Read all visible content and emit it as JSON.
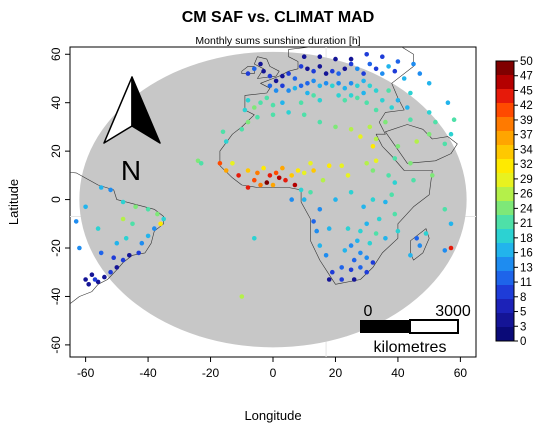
{
  "title": "CM SAF vs. CLIMAT MAD",
  "subtitle": "Monthly sums sunshine duration [h]",
  "chart_data": {
    "type": "map",
    "xlabel": "Longitude",
    "ylabel": "Latitude",
    "xlim": [
      -65,
      65
    ],
    "ylim": [
      -65,
      63
    ],
    "x_ticks": [
      -60,
      -40,
      -20,
      0,
      20,
      40,
      60
    ],
    "y_ticks": [
      -60,
      -40,
      -20,
      0,
      20,
      40,
      60
    ],
    "x_tick_labels": [
      "-60",
      "-40",
      "-20",
      "0",
      "20",
      "40",
      "60"
    ],
    "y_tick_labels": [
      "-60",
      "-40",
      "-20",
      "0",
      "20",
      "40",
      "60"
    ],
    "disk_fill": "#c7c7c7",
    "colorbar": {
      "labels": [
        "50",
        "47",
        "45",
        "42",
        "39",
        "37",
        "34",
        "32",
        "29",
        "26",
        "24",
        "21",
        "18",
        "16",
        "13",
        "11",
        "8",
        "5",
        "3",
        "0"
      ],
      "colors": [
        "#800000",
        "#b40000",
        "#e61a0a",
        "#ff4a00",
        "#ff7a00",
        "#ffa500",
        "#ffc800",
        "#ffea00",
        "#e8f220",
        "#b4f04a",
        "#7ee878",
        "#4ee0a8",
        "#2cd2d2",
        "#22b4ec",
        "#1e8cf0",
        "#1e64ea",
        "#1e3cd8",
        "#1c22b8",
        "#141496",
        "#0a0a78"
      ]
    },
    "scale_bar": {
      "start_label": "0",
      "end_label": "3000",
      "unit_label": "kilometres"
    },
    "north_arrow_label": "N",
    "stations": [
      {
        "lon": 9,
        "lat": 55,
        "v": 8
      },
      {
        "lon": 11,
        "lat": 54,
        "v": 5
      },
      {
        "lon": 13,
        "lat": 53,
        "v": 8
      },
      {
        "lon": 15,
        "lat": 55,
        "v": 3
      },
      {
        "lon": 17,
        "lat": 52,
        "v": 5
      },
      {
        "lon": 19,
        "lat": 53,
        "v": 8
      },
      {
        "lon": 21,
        "lat": 52,
        "v": 11
      },
      {
        "lon": 23,
        "lat": 54,
        "v": 5
      },
      {
        "lon": 25,
        "lat": 56,
        "v": 8
      },
      {
        "lon": 27,
        "lat": 54,
        "v": 13
      },
      {
        "lon": 29,
        "lat": 52,
        "v": 8
      },
      {
        "lon": 31,
        "lat": 56,
        "v": 11
      },
      {
        "lon": 33,
        "lat": 54,
        "v": 8
      },
      {
        "lon": 35,
        "lat": 52,
        "v": 13
      },
      {
        "lon": 37,
        "lat": 55,
        "v": 16
      },
      {
        "lon": 39,
        "lat": 53,
        "v": 8
      },
      {
        "lon": 3,
        "lat": 51,
        "v": 5
      },
      {
        "lon": 5,
        "lat": 52,
        "v": 8
      },
      {
        "lon": 7,
        "lat": 50,
        "v": 11
      },
      {
        "lon": 1,
        "lat": 49,
        "v": 5
      },
      {
        "lon": -1,
        "lat": 51,
        "v": 8
      },
      {
        "lon": -3,
        "lat": 53,
        "v": 3
      },
      {
        "lon": -4,
        "lat": 56,
        "v": 5
      },
      {
        "lon": -6,
        "lat": 54,
        "v": 11
      },
      {
        "lon": -8,
        "lat": 52,
        "v": 8
      },
      {
        "lon": 13,
        "lat": 49,
        "v": 13
      },
      {
        "lon": 11,
        "lat": 48,
        "v": 11
      },
      {
        "lon": 15,
        "lat": 47,
        "v": 16
      },
      {
        "lon": 17,
        "lat": 48,
        "v": 13
      },
      {
        "lon": 19,
        "lat": 47,
        "v": 18
      },
      {
        "lon": 21,
        "lat": 48,
        "v": 13
      },
      {
        "lon": 23,
        "lat": 46,
        "v": 16
      },
      {
        "lon": 25,
        "lat": 48,
        "v": 13
      },
      {
        "lon": 27,
        "lat": 47,
        "v": 18
      },
      {
        "lon": 29,
        "lat": 49,
        "v": 16
      },
      {
        "lon": 31,
        "lat": 47,
        "v": 18
      },
      {
        "lon": 9,
        "lat": 47,
        "v": 11
      },
      {
        "lon": 7,
        "lat": 46,
        "v": 16
      },
      {
        "lon": 5,
        "lat": 45,
        "v": 13
      },
      {
        "lon": 3,
        "lat": 47,
        "v": 8
      },
      {
        "lon": 1,
        "lat": 45,
        "v": 13
      },
      {
        "lon": -1,
        "lat": 47,
        "v": 11
      },
      {
        "lon": 13,
        "lat": 43,
        "v": 21
      },
      {
        "lon": 15,
        "lat": 41,
        "v": 18
      },
      {
        "lon": 11,
        "lat": 44,
        "v": 16
      },
      {
        "lon": 21,
        "lat": 43,
        "v": 18
      },
      {
        "lon": 23,
        "lat": 41,
        "v": 21
      },
      {
        "lon": 25,
        "lat": 43,
        "v": 18
      },
      {
        "lon": 27,
        "lat": 42,
        "v": 21
      },
      {
        "lon": 29,
        "lat": 44,
        "v": 16
      },
      {
        "lon": 33,
        "lat": 45,
        "v": 18
      },
      {
        "lon": 37,
        "lat": 45,
        "v": 21
      },
      {
        "lon": -4,
        "lat": 40,
        "v": 21
      },
      {
        "lon": -6,
        "lat": 38,
        "v": 24
      },
      {
        "lon": -8,
        "lat": 41,
        "v": 18
      },
      {
        "lon": -2,
        "lat": 42,
        "v": 21
      },
      {
        "lon": 0,
        "lat": 39,
        "v": 21
      },
      {
        "lon": -9,
        "lat": 37,
        "v": 18
      },
      {
        "lon": 3,
        "lat": 40,
        "v": 16
      },
      {
        "lon": 9,
        "lat": 40,
        "v": 21
      },
      {
        "lon": 25,
        "lat": 58,
        "v": 5
      },
      {
        "lon": 30,
        "lat": 60,
        "v": 8
      },
      {
        "lon": 20,
        "lat": 58,
        "v": 3
      },
      {
        "lon": 15,
        "lat": 59,
        "v": 5
      },
      {
        "lon": 10,
        "lat": 59,
        "v": 3
      },
      {
        "lon": 35,
        "lat": 59,
        "v": 8
      },
      {
        "lon": 40,
        "lat": 57,
        "v": 11
      },
      {
        "lon": 45,
        "lat": 56,
        "v": 13
      },
      {
        "lon": 42,
        "lat": 50,
        "v": 16
      },
      {
        "lon": 47,
        "lat": 52,
        "v": 13
      },
      {
        "lon": 50,
        "lat": 48,
        "v": 16
      },
      {
        "lon": 44,
        "lat": 44,
        "v": 18
      },
      {
        "lon": 40,
        "lat": 41,
        "v": 16
      },
      {
        "lon": 35,
        "lat": 41,
        "v": 18
      },
      {
        "lon": 30,
        "lat": 40,
        "v": 21
      },
      {
        "lon": 33,
        "lat": 37,
        "v": 21
      },
      {
        "lon": 38,
        "lat": 38,
        "v": 18
      },
      {
        "lon": 43,
        "lat": 38,
        "v": 16
      },
      {
        "lon": 50,
        "lat": 36,
        "v": 18
      },
      {
        "lon": 56,
        "lat": 40,
        "v": 16
      },
      {
        "lon": 52,
        "lat": 32,
        "v": 21
      },
      {
        "lon": 36,
        "lat": 32,
        "v": 24
      },
      {
        "lon": 31,
        "lat": 30,
        "v": 26
      },
      {
        "lon": 44,
        "lat": 33,
        "v": 21
      },
      {
        "lon": 50,
        "lat": 27,
        "v": 24
      },
      {
        "lon": 46,
        "lat": 24,
        "v": 26
      },
      {
        "lon": 40,
        "lat": 22,
        "v": 24
      },
      {
        "lon": 39,
        "lat": 17,
        "v": 21
      },
      {
        "lon": 44,
        "lat": 15,
        "v": 24
      },
      {
        "lon": 55,
        "lat": 23,
        "v": 21
      },
      {
        "lon": 57,
        "lat": 27,
        "v": 18
      },
      {
        "lon": 58,
        "lat": 33,
        "v": 21
      },
      {
        "lon": 33,
        "lat": 25,
        "v": 26
      },
      {
        "lon": 28,
        "lat": 26,
        "v": 29
      },
      {
        "lon": 32,
        "lat": 22,
        "v": 32
      },
      {
        "lon": 25,
        "lat": 29,
        "v": 26
      },
      {
        "lon": 20,
        "lat": 30,
        "v": 24
      },
      {
        "lon": 15,
        "lat": 32,
        "v": 21
      },
      {
        "lon": 10,
        "lat": 35,
        "v": 21
      },
      {
        "lon": 5,
        "lat": 36,
        "v": 18
      },
      {
        "lon": 0,
        "lat": 35,
        "v": 21
      },
      {
        "lon": -5,
        "lat": 34,
        "v": 21
      },
      {
        "lon": -8,
        "lat": 32,
        "v": 24
      },
      {
        "lon": -10,
        "lat": 29,
        "v": 21
      },
      {
        "lon": -16,
        "lat": 28,
        "v": 21
      },
      {
        "lon": -15,
        "lat": 24,
        "v": 18
      },
      {
        "lon": -13,
        "lat": 15,
        "v": 29
      },
      {
        "lon": -17,
        "lat": 15,
        "v": 42
      },
      {
        "lon": -15,
        "lat": 12,
        "v": 37
      },
      {
        "lon": -11,
        "lat": 10,
        "v": 45
      },
      {
        "lon": -8,
        "lat": 12,
        "v": 34
      },
      {
        "lon": -5,
        "lat": 11,
        "v": 39
      },
      {
        "lon": -3,
        "lat": 13,
        "v": 32
      },
      {
        "lon": -1,
        "lat": 10,
        "v": 45
      },
      {
        "lon": 1,
        "lat": 11,
        "v": 42
      },
      {
        "lon": 3,
        "lat": 13,
        "v": 37
      },
      {
        "lon": 2,
        "lat": 9,
        "v": 47
      },
      {
        "lon": -2,
        "lat": 7,
        "v": 50
      },
      {
        "lon": 4,
        "lat": 8,
        "v": 45
      },
      {
        "lon": 6,
        "lat": 10,
        "v": 34
      },
      {
        "lon": 8,
        "lat": 12,
        "v": 32
      },
      {
        "lon": 10,
        "lat": 11,
        "v": 29
      },
      {
        "lon": 13,
        "lat": 12,
        "v": 34
      },
      {
        "lon": 7,
        "lat": 6,
        "v": 47
      },
      {
        "lon": -6,
        "lat": 8,
        "v": 42
      },
      {
        "lon": -4,
        "lat": 6,
        "v": 39
      },
      {
        "lon": 0,
        "lat": 6,
        "v": 37
      },
      {
        "lon": -8,
        "lat": 5,
        "v": 45
      },
      {
        "lon": 12,
        "lat": 15,
        "v": 29
      },
      {
        "lon": 18,
        "lat": 14,
        "v": 32
      },
      {
        "lon": 22,
        "lat": 14,
        "v": 29
      },
      {
        "lon": 30,
        "lat": 15,
        "v": 26
      },
      {
        "lon": 33,
        "lat": 16,
        "v": 29
      },
      {
        "lon": 32,
        "lat": 12,
        "v": 24
      },
      {
        "lon": 37,
        "lat": 10,
        "v": 21
      },
      {
        "lon": 39,
        "lat": 7,
        "v": 18
      },
      {
        "lon": 38,
        "lat": 2,
        "v": 21
      },
      {
        "lon": 36,
        "lat": -1,
        "v": 16
      },
      {
        "lon": 32,
        "lat": 0,
        "v": 18
      },
      {
        "lon": 29,
        "lat": -3,
        "v": 16
      },
      {
        "lon": 24,
        "lat": 10,
        "v": 29
      },
      {
        "lon": 16,
        "lat": 8,
        "v": 26
      },
      {
        "lon": 45,
        "lat": 8,
        "v": 21
      },
      {
        "lon": 51,
        "lat": 10,
        "v": 24
      },
      {
        "lon": 39,
        "lat": -6,
        "v": 21
      },
      {
        "lon": 34,
        "lat": -8,
        "v": 18
      },
      {
        "lon": 30,
        "lat": -10,
        "v": 16
      },
      {
        "lon": 28,
        "lat": -13,
        "v": 18
      },
      {
        "lon": 33,
        "lat": -14,
        "v": 21
      },
      {
        "lon": 36,
        "lat": -16,
        "v": 16
      },
      {
        "lon": 31,
        "lat": -18,
        "v": 18
      },
      {
        "lon": 27,
        "lat": -17,
        "v": 16
      },
      {
        "lon": 25,
        "lat": -19,
        "v": 13
      },
      {
        "lon": 23,
        "lat": -21,
        "v": 16
      },
      {
        "lon": 28,
        "lat": -22,
        "v": 13
      },
      {
        "lon": 26,
        "lat": -25,
        "v": 11
      },
      {
        "lon": 30,
        "lat": -24,
        "v": 13
      },
      {
        "lon": 32,
        "lat": -26,
        "v": 8
      },
      {
        "lon": 28,
        "lat": -28,
        "v": 11
      },
      {
        "lon": 25,
        "lat": -29,
        "v": 8
      },
      {
        "lon": 22,
        "lat": -28,
        "v": 11
      },
      {
        "lon": 19,
        "lat": -30,
        "v": 8
      },
      {
        "lon": 18,
        "lat": -33,
        "v": 5
      },
      {
        "lon": 22,
        "lat": -33,
        "v": 8
      },
      {
        "lon": 26,
        "lat": -33,
        "v": 5
      },
      {
        "lon": 30,
        "lat": -30,
        "v": 8
      },
      {
        "lon": 17,
        "lat": -23,
        "v": 13
      },
      {
        "lon": 15,
        "lat": -19,
        "v": 16
      },
      {
        "lon": 14,
        "lat": -13,
        "v": 13
      },
      {
        "lon": 13,
        "lat": -9,
        "v": 11
      },
      {
        "lon": 18,
        "lat": -12,
        "v": 16
      },
      {
        "lon": 24,
        "lat": -12,
        "v": 18
      },
      {
        "lon": 47,
        "lat": -19,
        "v": 13
      },
      {
        "lon": 44,
        "lat": -23,
        "v": 16
      },
      {
        "lon": 49,
        "lat": -14,
        "v": 18
      },
      {
        "lon": 46,
        "lat": -16,
        "v": 11
      },
      {
        "lon": 57,
        "lat": -20,
        "v": 45
      },
      {
        "lon": 55,
        "lat": -21,
        "v": 13
      },
      {
        "lon": 40,
        "lat": -13,
        "v": 18
      },
      {
        "lon": 55,
        "lat": -4,
        "v": 21
      },
      {
        "lon": 57,
        "lat": -10,
        "v": 16
      },
      {
        "lon": 12,
        "lat": 3,
        "v": 21
      },
      {
        "lon": 9,
        "lat": 4,
        "v": 18
      },
      {
        "lon": 10,
        "lat": 0,
        "v": 16
      },
      {
        "lon": 15,
        "lat": -4,
        "v": 13
      },
      {
        "lon": 20,
        "lat": 0,
        "v": 16
      },
      {
        "lon": 25,
        "lat": 3,
        "v": 18
      },
      {
        "lon": 6,
        "lat": 0,
        "v": 13
      },
      {
        "lon": -6,
        "lat": -16,
        "v": 18
      },
      {
        "lon": -10,
        "lat": -40,
        "v": 26
      },
      {
        "lon": -24,
        "lat": 16,
        "v": 24
      },
      {
        "lon": -23,
        "lat": 15,
        "v": 21
      },
      {
        "lon": -55,
        "lat": 5,
        "v": 16
      },
      {
        "lon": -52,
        "lat": 4,
        "v": 13
      },
      {
        "lon": -48,
        "lat": -1,
        "v": 18
      },
      {
        "lon": -44,
        "lat": -3,
        "v": 24
      },
      {
        "lon": -40,
        "lat": -4,
        "v": 21
      },
      {
        "lon": -37,
        "lat": -6,
        "v": 24
      },
      {
        "lon": -35,
        "lat": -8,
        "v": 18
      },
      {
        "lon": -38,
        "lat": -12,
        "v": 13
      },
      {
        "lon": -40,
        "lat": -15,
        "v": 16
      },
      {
        "lon": -42,
        "lat": -18,
        "v": 13
      },
      {
        "lon": -43,
        "lat": -22,
        "v": 8
      },
      {
        "lon": -46,
        "lat": -23,
        "v": 5
      },
      {
        "lon": -48,
        "lat": -25,
        "v": 8
      },
      {
        "lon": -50,
        "lat": -28,
        "v": 5
      },
      {
        "lon": -52,
        "lat": -30,
        "v": 8
      },
      {
        "lon": -54,
        "lat": -32,
        "v": 5
      },
      {
        "lon": -56,
        "lat": -34,
        "v": 3
      },
      {
        "lon": -57,
        "lat": -33,
        "v": 8
      },
      {
        "lon": -58,
        "lat": -31,
        "v": 5
      },
      {
        "lon": -60,
        "lat": -33,
        "v": 3
      },
      {
        "lon": -59,
        "lat": -35,
        "v": 5
      },
      {
        "lon": -50,
        "lat": -18,
        "v": 16
      },
      {
        "lon": -47,
        "lat": -16,
        "v": 18
      },
      {
        "lon": -45,
        "lat": -10,
        "v": 21
      },
      {
        "lon": -56,
        "lat": -12,
        "v": 18
      },
      {
        "lon": -60,
        "lat": -3,
        "v": 16
      },
      {
        "lon": -63,
        "lat": -9,
        "v": 13
      },
      {
        "lon": -55,
        "lat": -22,
        "v": 11
      },
      {
        "lon": -51,
        "lat": -24,
        "v": 8
      },
      {
        "lon": -62,
        "lat": -20,
        "v": 13
      },
      {
        "lon": -48,
        "lat": -8,
        "v": 26
      },
      {
        "lon": -36,
        "lat": -10,
        "v": 32
      }
    ]
  }
}
